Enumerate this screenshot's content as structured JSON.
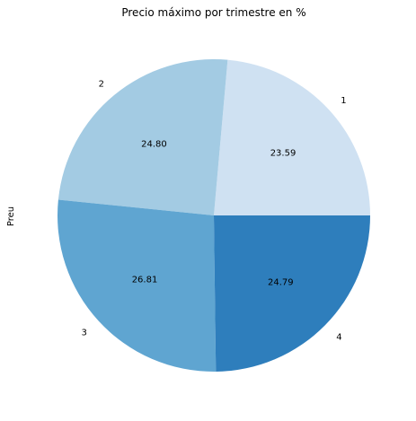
{
  "chart_data": {
    "type": "pie",
    "title": "Precio máximo por trimestre en %",
    "ylabel": "Preu",
    "categories": [
      "1",
      "2",
      "3",
      "4"
    ],
    "values": [
      23.59,
      24.8,
      26.81,
      24.79
    ],
    "value_labels": [
      "23.59",
      "24.80",
      "26.81",
      "24.79"
    ],
    "colors": [
      "#cfe1f2",
      "#a3cbe3",
      "#5fa5d1",
      "#2e7ebc"
    ],
    "start_angle_deg": 0,
    "direction": "counterclockwise"
  }
}
